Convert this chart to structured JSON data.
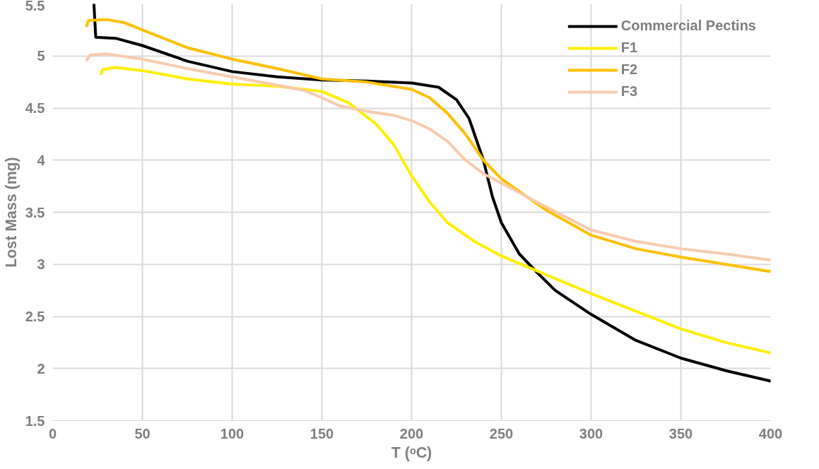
{
  "chart_data": {
    "type": "line",
    "xlabel": "T (ᵒC)",
    "ylabel": "Lost Mass (mg)",
    "xlim": [
      0,
      400
    ],
    "ylim": [
      1.5,
      5.5
    ],
    "xticks": [
      0,
      50,
      100,
      150,
      200,
      250,
      300,
      350,
      400
    ],
    "yticks": [
      1.5,
      2,
      2.5,
      3,
      3.5,
      4,
      4.5,
      5,
      5.5
    ],
    "grid": true,
    "legend": "top right",
    "marker": "none",
    "line_style": "solid",
    "series": [
      {
        "name": "Commercial Pectins",
        "color": "#000000",
        "x": [
          23,
          24,
          35,
          50,
          75,
          100,
          125,
          150,
          175,
          200,
          215,
          225,
          232,
          240,
          245,
          250,
          260,
          270,
          280,
          300,
          325,
          350,
          375,
          400
        ],
        "values": [
          5.5,
          5.18,
          5.17,
          5.1,
          4.95,
          4.85,
          4.8,
          4.77,
          4.76,
          4.74,
          4.7,
          4.58,
          4.4,
          4.0,
          3.65,
          3.4,
          3.1,
          2.92,
          2.75,
          2.52,
          2.27,
          2.1,
          1.98,
          1.88
        ]
      },
      {
        "name": "F1",
        "color": "#ffef00",
        "x": [
          27,
          28,
          35,
          50,
          75,
          100,
          125,
          150,
          165,
          180,
          190,
          200,
          210,
          220,
          235,
          250,
          275,
          300,
          325,
          350,
          375,
          400
        ],
        "values": [
          4.83,
          4.87,
          4.89,
          4.86,
          4.78,
          4.73,
          4.71,
          4.66,
          4.55,
          4.35,
          4.15,
          3.85,
          3.6,
          3.4,
          3.22,
          3.08,
          2.9,
          2.72,
          2.55,
          2.38,
          2.25,
          2.15
        ]
      },
      {
        "name": "F2",
        "color": "#ffc000",
        "x": [
          19,
          20,
          30,
          40,
          50,
          75,
          100,
          125,
          150,
          175,
          200,
          210,
          220,
          230,
          240,
          250,
          260,
          275,
          300,
          325,
          350,
          375,
          400
        ],
        "values": [
          5.29,
          5.34,
          5.35,
          5.32,
          5.25,
          5.08,
          4.97,
          4.88,
          4.78,
          4.75,
          4.68,
          4.6,
          4.45,
          4.25,
          4.0,
          3.82,
          3.7,
          3.52,
          3.28,
          3.15,
          3.07,
          3.0,
          2.93
        ]
      },
      {
        "name": "F3",
        "color": "#f8cbad",
        "x": [
          19,
          21,
          30,
          50,
          75,
          100,
          125,
          140,
          150,
          160,
          175,
          190,
          200,
          210,
          220,
          230,
          240,
          250,
          275,
          300,
          325,
          350,
          375,
          400
        ],
        "values": [
          4.96,
          5.01,
          5.02,
          4.97,
          4.88,
          4.8,
          4.72,
          4.67,
          4.6,
          4.52,
          4.47,
          4.43,
          4.38,
          4.3,
          4.18,
          4.0,
          3.87,
          3.78,
          3.55,
          3.33,
          3.22,
          3.15,
          3.1,
          3.04
        ]
      }
    ]
  }
}
